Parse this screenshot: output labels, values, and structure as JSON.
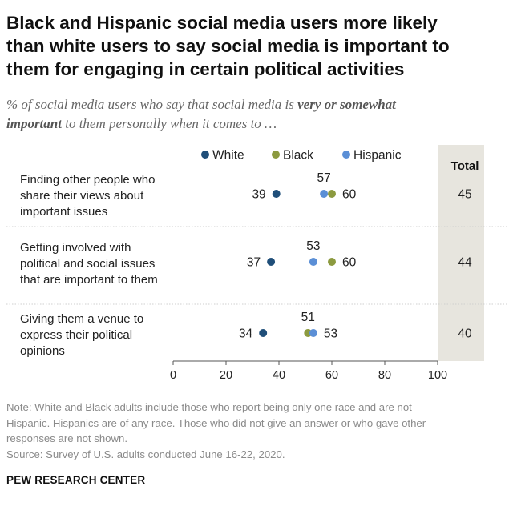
{
  "title_lines": [
    "Black and Hispanic social media users more likely",
    "than white users to say social media is important to",
    "them for engaging in certain political activities"
  ],
  "subtitle": {
    "part1": "% of social media users who say that social media is ",
    "bold1": "very or somewhat",
    "bold2": "important",
    "part2": " to them personally when it comes to …"
  },
  "colors": {
    "white": "#1f4e79",
    "black": "#8c9a3f",
    "hispanic": "#5b8fd6",
    "total_bg": "#e7e5de",
    "divider": "#cfcfcf"
  },
  "chart_data": {
    "type": "scatter",
    "subtype": "dot-plot",
    "series": [
      {
        "name": "White",
        "values": [
          39,
          37,
          34
        ]
      },
      {
        "name": "Black",
        "values": [
          60,
          60,
          51
        ]
      },
      {
        "name": "Hispanic",
        "values": [
          57,
          53,
          53
        ]
      }
    ],
    "categories": [
      [
        "Finding other people who",
        "share their views about",
        "important issues"
      ],
      [
        "Getting involved with",
        "political and social issues",
        "that are important to them"
      ],
      [
        "Giving them a venue to",
        "express their political",
        "opinions"
      ]
    ],
    "total_header": "Total",
    "totals": [
      45,
      44,
      40
    ],
    "xlim": [
      0,
      100
    ],
    "xticks": [
      0,
      20,
      40,
      60,
      80,
      100
    ],
    "legend_placement": "top",
    "grid": false
  },
  "notes": [
    "Note: White and Black adults include those who report being only one race and are not",
    "Hispanic. Hispanics are of any race. Those who did not give an answer or who gave other",
    "responses are not shown.",
    "Source: Survey of U.S. adults conducted June 16-22, 2020."
  ],
  "brand": "PEW RESEARCH CENTER"
}
